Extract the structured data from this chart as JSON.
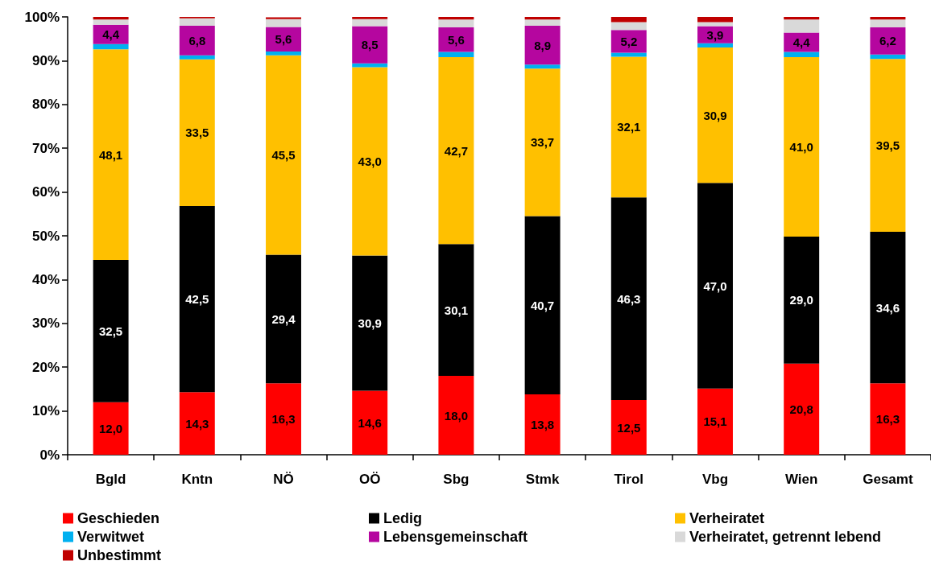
{
  "chart_data": {
    "type": "bar",
    "stacked": true,
    "categories": [
      "Bgld",
      "Kntn",
      "NÖ",
      "OÖ",
      "Sbg",
      "Stmk",
      "Tirol",
      "Vbg",
      "Wien",
      "Gesamt"
    ],
    "ylim": [
      0,
      100
    ],
    "yticks": [
      {
        "value": 0,
        "label": "0%"
      },
      {
        "value": 10,
        "label": "10%"
      },
      {
        "value": 20,
        "label": "20%"
      },
      {
        "value": 30,
        "label": "30%"
      },
      {
        "value": 40,
        "label": "40%"
      },
      {
        "value": 50,
        "label": "50%"
      },
      {
        "value": 60,
        "label": "60%"
      },
      {
        "value": 70,
        "label": "70%"
      },
      {
        "value": 80,
        "label": "80%"
      },
      {
        "value": 90,
        "label": "90%"
      },
      {
        "value": 100,
        "label": "100%"
      }
    ],
    "grid": false,
    "legend": "bottom",
    "series": [
      {
        "name": "Geschieden",
        "color": "#ff0000",
        "values": [
          12.0,
          14.3,
          16.3,
          14.6,
          18.0,
          13.8,
          12.5,
          15.1,
          20.8,
          16.3
        ],
        "value_labels": [
          "12,0",
          "14,3",
          "16,3",
          "14,6",
          "18,0",
          "13,8",
          "12,5",
          "15,1",
          "20,8",
          "16,3"
        ]
      },
      {
        "name": "Ledig",
        "color": "#000000",
        "values": [
          32.5,
          42.5,
          29.4,
          30.9,
          30.1,
          40.7,
          46.3,
          47.0,
          29.0,
          34.6
        ],
        "value_labels": [
          "32,5",
          "42,5",
          "29,4",
          "30,9",
          "30,1",
          "40,7",
          "46,3",
          "47,0",
          "29,0",
          "34,6"
        ]
      },
      {
        "name": "Verheiratet",
        "color": "#ffc000",
        "values": [
          48.1,
          33.5,
          45.5,
          43.0,
          42.7,
          33.7,
          32.1,
          30.9,
          41.0,
          39.5
        ],
        "value_labels": [
          "48,1",
          "33,5",
          "45,5",
          "43,0",
          "42,7",
          "33,7",
          "32,1",
          "30,9",
          "41,0",
          "39,5"
        ]
      },
      {
        "name": "Verwitwet",
        "color": "#00b0f0",
        "values": [
          1.2,
          0.9,
          0.9,
          0.9,
          1.2,
          0.9,
          0.9,
          1.0,
          1.2,
          1.0
        ]
      },
      {
        "name": "Lebensgemeinschaft",
        "color": "#b5069f",
        "values": [
          4.4,
          6.8,
          5.6,
          8.5,
          5.6,
          8.9,
          5.2,
          3.9,
          4.4,
          6.2
        ],
        "value_labels": [
          "4,4",
          "6,8",
          "5,6",
          "8,5",
          "5,6",
          "8,9",
          "5,2",
          "3,9",
          "4,4",
          "6,2"
        ]
      },
      {
        "name": "Verheiratet, getrennt lebend",
        "color": "#d9d9d9",
        "values": [
          1.2,
          1.7,
          1.8,
          1.6,
          1.8,
          1.4,
          1.8,
          0.9,
          3.0,
          1.8
        ]
      },
      {
        "name": "Unbestimmt",
        "color": "#c00000",
        "values": [
          0.6,
          0.3,
          0.4,
          0.5,
          0.6,
          0.6,
          1.2,
          1.2,
          0.6,
          0.6
        ]
      }
    ]
  }
}
